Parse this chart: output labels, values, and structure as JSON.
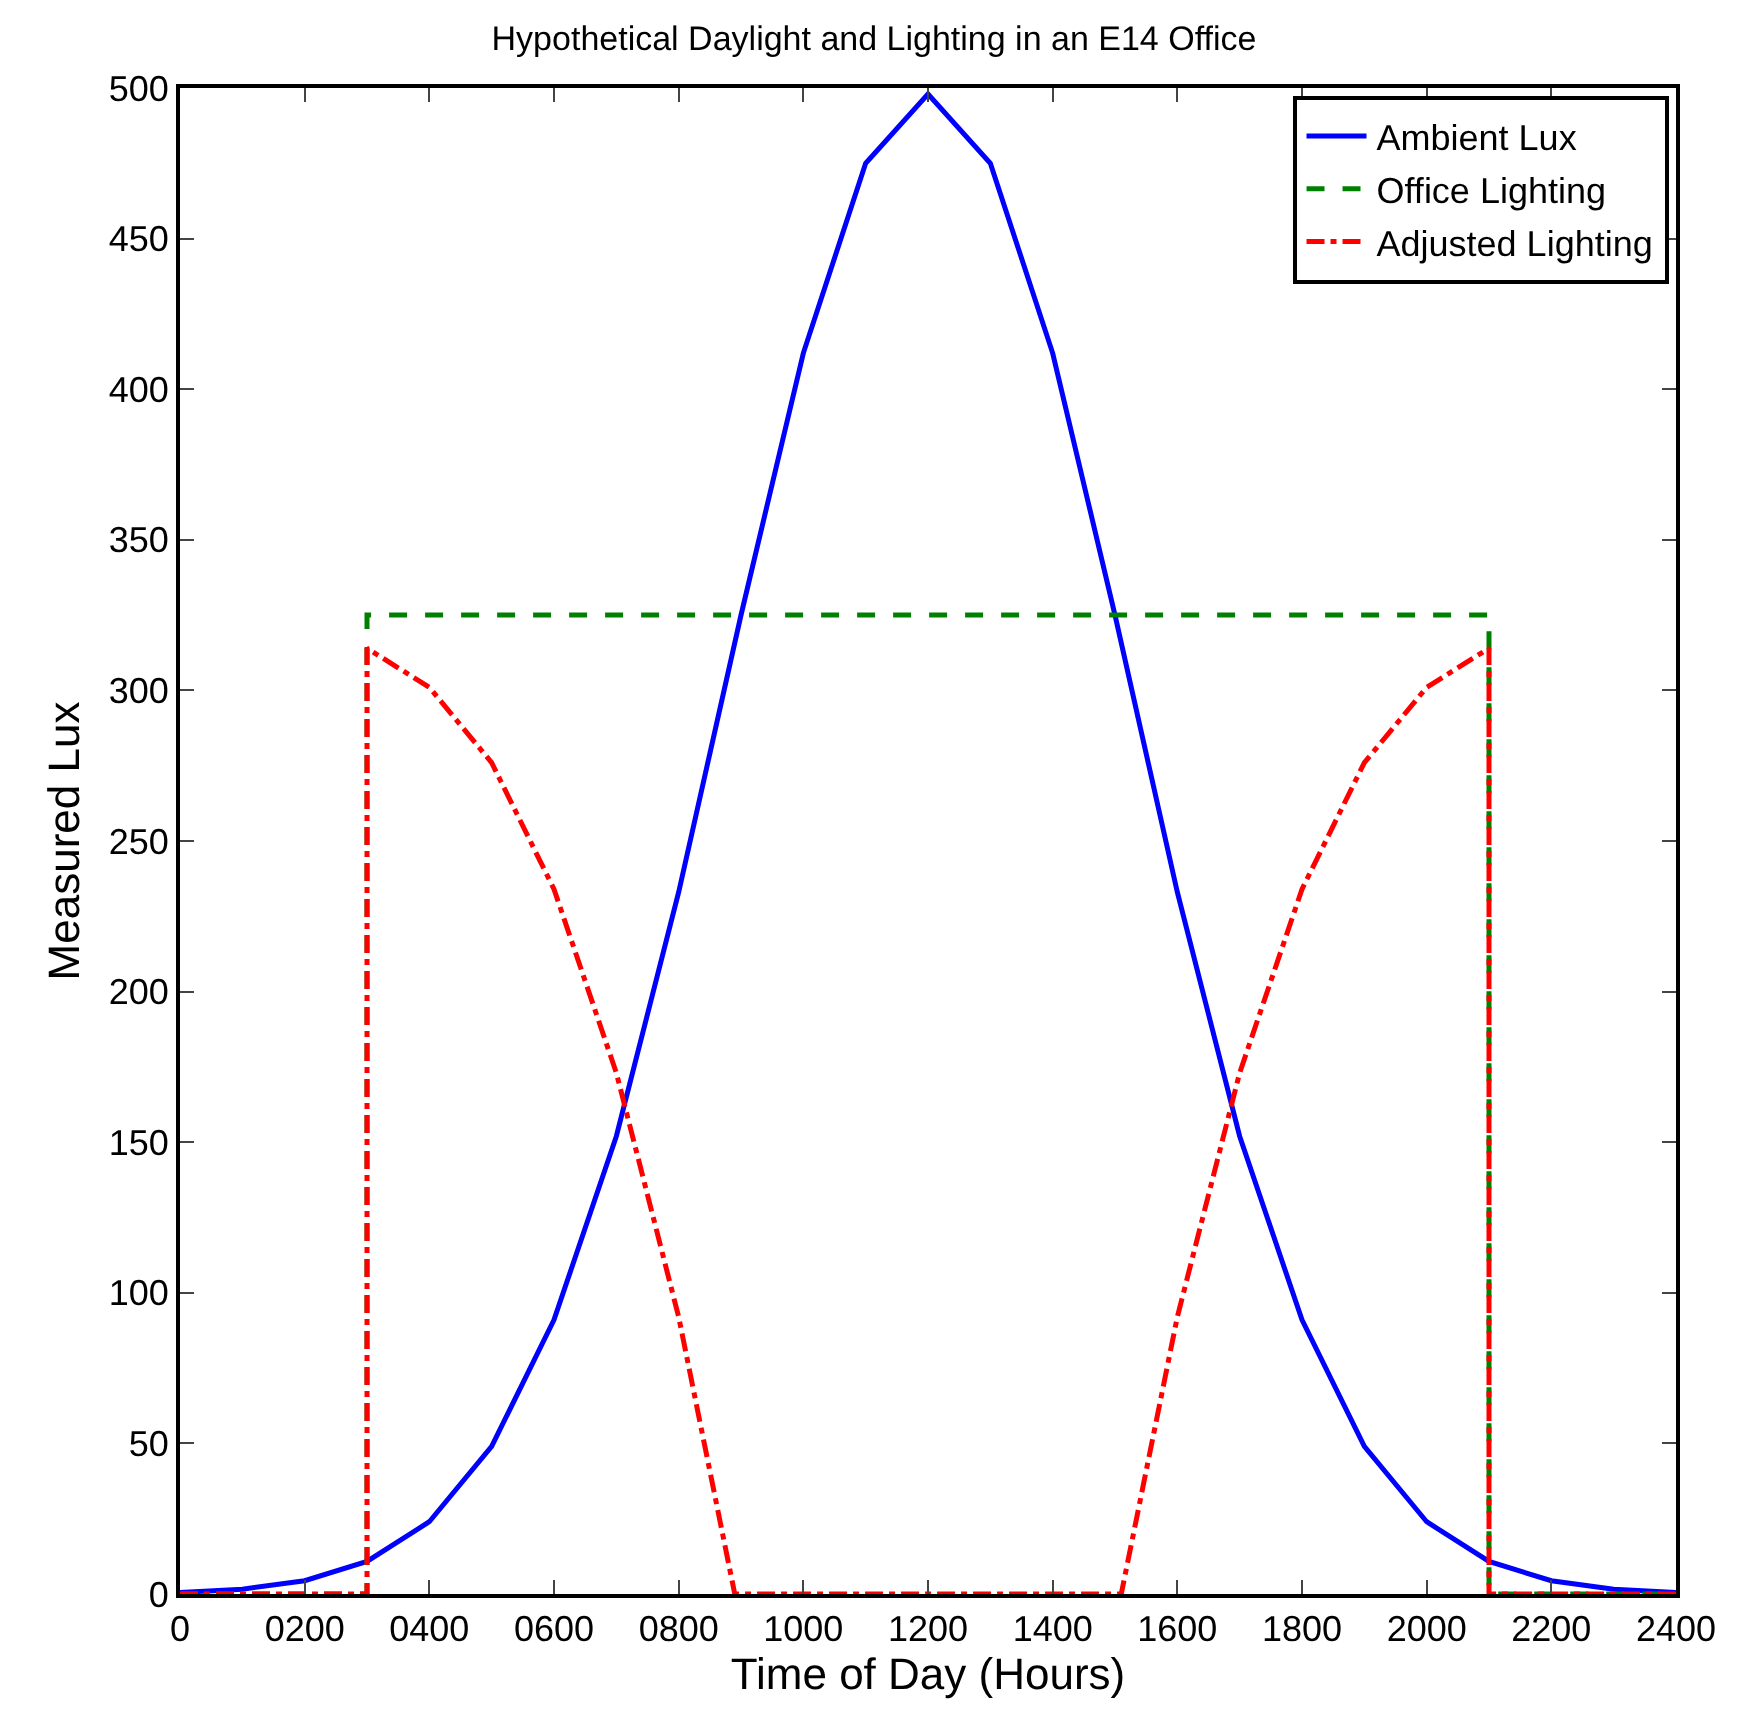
{
  "chart_data": {
    "type": "line",
    "title": "Hypothetical Daylight and Lighting in an E14 Office",
    "xlabel": "Time of Day (Hours)",
    "ylabel": "Measured Lux",
    "xlim": [
      0,
      2400
    ],
    "xticks": [
      0,
      {
        "value": 200,
        "label": "0200"
      },
      {
        "value": 400,
        "label": "0400"
      },
      {
        "value": 600,
        "label": "0600"
      },
      {
        "value": 800,
        "label": "0800"
      },
      1000,
      1200,
      1400,
      1600,
      1800,
      2000,
      2200,
      2400
    ],
    "ylim": [
      0,
      500
    ],
    "yticks": [
      0,
      50,
      100,
      150,
      200,
      250,
      300,
      350,
      400,
      450,
      500
    ],
    "grid": false,
    "legend": "top right",
    "marker": "none",
    "series": [
      {
        "name": "Ambient Lux",
        "color": "#0000ff",
        "line_style": "solid",
        "x": [
          0,
          100,
          200,
          300,
          400,
          500,
          600,
          700,
          800,
          900,
          1000,
          1100,
          1200,
          1300,
          1400,
          1500,
          1600,
          1700,
          1800,
          1900,
          2000,
          2100,
          2200,
          2300,
          2400
        ],
        "values": [
          0.5,
          1.6,
          4.4,
          10.8,
          24,
          49,
          91,
          152,
          233,
          325,
          412,
          475,
          498,
          475,
          412,
          325,
          233,
          152,
          91,
          49,
          24,
          10.8,
          4.4,
          1.6,
          0.5
        ]
      },
      {
        "name": "Office Lighting",
        "color": "#008000",
        "line_style": "dashed",
        "x": [
          0,
          300,
          300,
          2100,
          2100,
          2400
        ],
        "values": [
          0,
          0,
          325,
          325,
          0,
          0
        ]
      },
      {
        "name": "Adjusted Lighting",
        "color": "#ff0000",
        "line_style": "dashdot",
        "x": [
          0,
          300,
          300,
          400,
          500,
          600,
          700,
          800,
          890,
          1510,
          1600,
          1700,
          1800,
          1900,
          2000,
          2100,
          2100,
          2400
        ],
        "values": [
          0,
          0,
          314,
          301,
          276,
          234,
          173,
          92,
          0,
          0,
          92,
          173,
          234,
          276,
          301,
          314,
          0,
          0
        ]
      }
    ]
  }
}
